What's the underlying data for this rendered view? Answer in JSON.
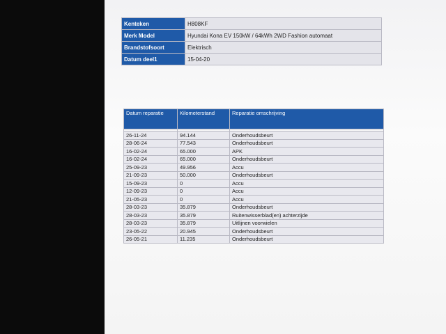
{
  "vehicle": {
    "rows": [
      [
        "Kenteken",
        "H808KF"
      ],
      [
        "Merk Model",
        "Hyundai Kona EV 150kW / 64kWh 2WD Fashion automaat"
      ],
      [
        "Brandstofsoort",
        "Elektrisch"
      ],
      [
        "Datum deel1",
        "15-04-20"
      ]
    ]
  },
  "repairs": {
    "header": [
      "Datum reparatie",
      "Kilometerstand",
      "Reparatie omschrijving"
    ],
    "rows": [
      [
        "26-11-24",
        "94.144",
        "Onderhoudsbeurt"
      ],
      [
        "28-06-24",
        "77.543",
        "Onderhoudsbeurt"
      ],
      [
        "16-02-24",
        "65.000",
        "APK"
      ],
      [
        "16-02-24",
        "65.000",
        "Onderhoudsbeurt"
      ],
      [
        "25-09-23",
        "49.956",
        "Accu"
      ],
      [
        "21-09-23",
        "50.000",
        "Onderhoudsbeurt"
      ],
      [
        "15-09-23",
        "0",
        "Accu"
      ],
      [
        "12-09-23",
        "0",
        "Accu"
      ],
      [
        "21-05-23",
        "0",
        "Accu"
      ],
      [
        "28-03-23",
        "35.879",
        "Onderhoudsbeurt"
      ],
      [
        "28-03-23",
        "35.879",
        "Ruitenwisserblad(en) achterzijde"
      ],
      [
        "28-03-23",
        "35.879",
        "Uitlijnen voorwielen"
      ],
      [
        "23-05-22",
        "20.945",
        "Onderhoudsbeurt"
      ],
      [
        "26-05-21",
        "11.235",
        "Onderhoudsbeurt"
      ]
    ]
  }
}
